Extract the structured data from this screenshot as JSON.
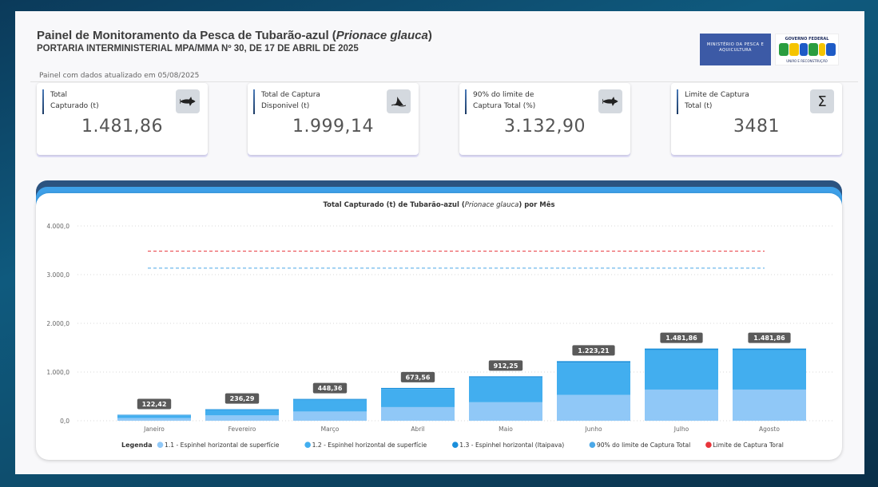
{
  "header": {
    "title_main": "Painel de Monitoramento da Pesca de Tubarão-azul (",
    "title_species": "Prionace glauca",
    "title_close": ")",
    "subtitle": "PORTARIA INTERMINISTERIAL MPA/MMA Nº 30, DE 17 DE ABRIL DE 2025",
    "updated": "Painel com dados atualizado em 05/08/2025"
  },
  "logos": {
    "mpa": "MINISTÉRIO DA PESCA E AQUICULTURA",
    "gov_top": "GOVERNO FEDERAL",
    "gov_word": "BRASIL",
    "gov_bottom": "UNIÃO E RECONSTRUÇÃO"
  },
  "cards": [
    {
      "label": "Total Capturado (t)",
      "value": "1.481,86",
      "icon": "shark-icon"
    },
    {
      "label": "Total de Captura Disponivel (t)",
      "value": "1.999,14",
      "icon": "fin-icon"
    },
    {
      "label": "90% do limite de Captura Total (%)",
      "value": "3.132,90",
      "icon": "shark-icon"
    },
    {
      "label": "Limite de Captura Total (t)",
      "value": "3481",
      "icon": "sigma-icon"
    }
  ],
  "chart_data": {
    "type": "bar",
    "title_prefix": "Total Capturado (t) de Tubarão-azul (",
    "title_species": "Prionace glauca",
    "title_suffix": ") por Mês",
    "categories": [
      "Janeiro",
      "Fevereiro",
      "Março",
      "Abril",
      "Maio",
      "Junho",
      "Julho",
      "Agosto"
    ],
    "totals": [
      122.42,
      236.29,
      448.36,
      673.56,
      912.25,
      1223.21,
      1481.86,
      1481.86
    ],
    "total_labels": [
      "122,42",
      "236,29",
      "448,36",
      "673,56",
      "912,25",
      "1.223,21",
      "1.481,86",
      "1.481,86"
    ],
    "series": [
      {
        "name": "1.1 - Espinhel horizontal de superfície",
        "color": "#90c8f7",
        "values": [
          55,
          110,
          190,
          280,
          380,
          530,
          640,
          640
        ]
      },
      {
        "name": "1.2 - Espinhel horizontal de superfície",
        "color": "#42aeef",
        "values": [
          57,
          112,
          240,
          373,
          512,
          663,
          812,
          812
        ]
      },
      {
        "name": "1.3 - Espinhel horizontal (Itaipava)",
        "color": "#1a8fdb",
        "values": [
          10.42,
          14.29,
          18.36,
          20.56,
          20.25,
          30.21,
          29.86,
          29.86
        ]
      }
    ],
    "reference_lines": [
      {
        "name": "90% do limite de Captura Total",
        "value": 3132.9,
        "color": "#4ba8e8"
      },
      {
        "name": "Limite de Captura Toral",
        "value": 3481,
        "color": "#e8343a"
      }
    ],
    "ylim": [
      0,
      4000
    ],
    "y_ticks": [
      0,
      1000,
      2000,
      3000,
      4000
    ],
    "y_tick_labels": [
      "0,0",
      "1.000,0",
      "2.000,0",
      "3.000,0",
      "4.000,0"
    ],
    "legend_title": "Legenda",
    "legend_position": "bottom",
    "grid": true
  }
}
